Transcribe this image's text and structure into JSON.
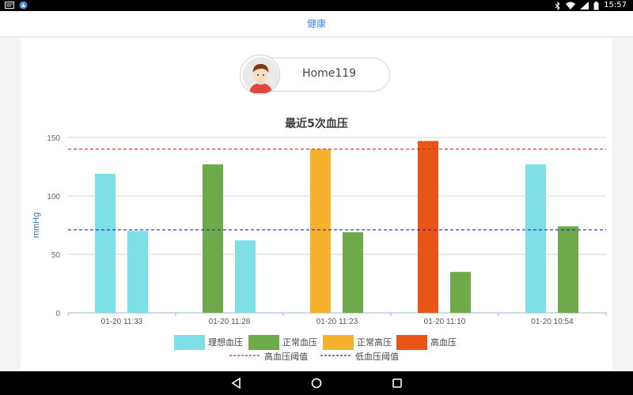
{
  "status_bar": {
    "time": "15:57",
    "icons_left": [
      "message-icon",
      "app-notification-icon"
    ],
    "icons_right": [
      "bluetooth-icon",
      "wifi-icon",
      "signal-icon",
      "battery-icon"
    ]
  },
  "app_bar": {
    "title": "健康"
  },
  "user": {
    "name": "Home119",
    "avatar": "user-avatar-icon"
  },
  "chart_data": {
    "type": "bar",
    "title": "最近5次血压",
    "ylabel": "mmHg",
    "xlabel": "",
    "ylim": [
      0,
      150
    ],
    "yticks": [
      0,
      50,
      100,
      150
    ],
    "categories": [
      "01-20 11:33",
      "01-20 11:28",
      "01-20 11:23",
      "01-20 11:10",
      "01-20 10:54"
    ],
    "groups": [
      {
        "category": "01-20 11:33",
        "bars": [
          {
            "value": 119,
            "level": "理想血压"
          },
          {
            "value": 70,
            "level": "理想血压"
          }
        ]
      },
      {
        "category": "01-20 11:28",
        "bars": [
          {
            "value": 127,
            "level": "正常血压"
          },
          {
            "value": 62,
            "level": "理想血压"
          }
        ]
      },
      {
        "category": "01-20 11:23",
        "bars": [
          {
            "value": 140,
            "level": "正常高压"
          },
          {
            "value": 69,
            "level": "正常血压"
          }
        ]
      },
      {
        "category": "01-20 11:10",
        "bars": [
          {
            "value": 147,
            "level": "高血压"
          },
          {
            "value": 35,
            "level": "正常血压"
          }
        ]
      },
      {
        "category": "01-20 10:54",
        "bars": [
          {
            "value": 127,
            "level": "理想血压"
          },
          {
            "value": 74,
            "level": "正常血压"
          }
        ]
      }
    ],
    "thresholds": [
      {
        "name": "高血压阈值",
        "value": 140,
        "color": "#e02020"
      },
      {
        "name": "低血压阈值",
        "value": 71,
        "color": "#2020c8"
      }
    ],
    "legend": {
      "placement": "bottom-center",
      "levels": [
        {
          "name": "理想血压",
          "color": "#7ee0e6"
        },
        {
          "name": "正常血压",
          "color": "#6eaa4a"
        },
        {
          "name": "正常高压",
          "color": "#f6b22c"
        },
        {
          "name": "高血压",
          "color": "#e95417"
        }
      ]
    },
    "grid": true
  },
  "nav_bar": {
    "buttons": [
      "back-icon",
      "home-icon",
      "recents-icon"
    ]
  }
}
